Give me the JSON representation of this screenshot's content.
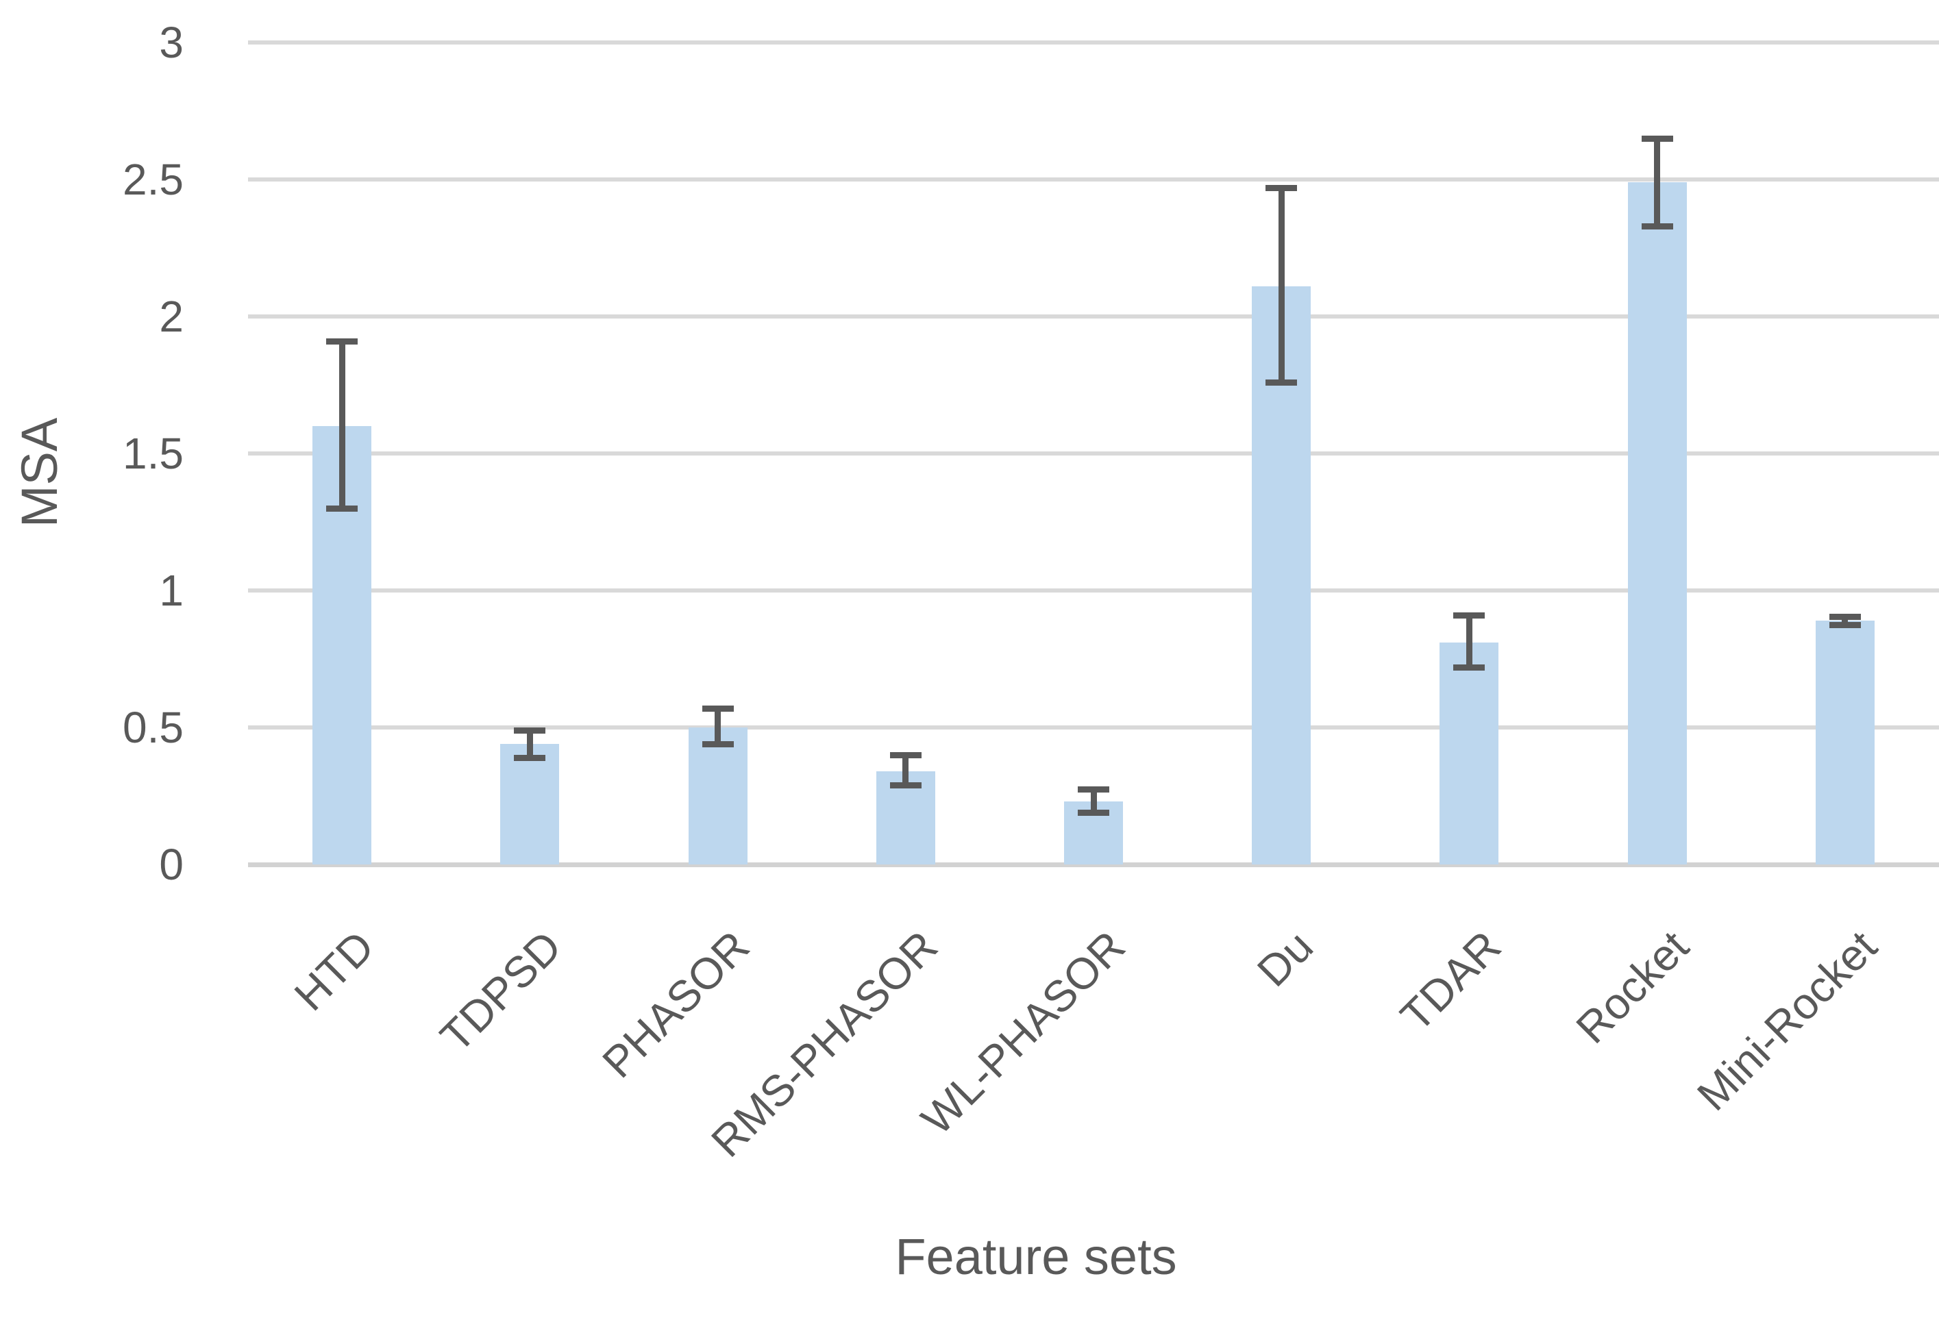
{
  "chart_data": {
    "type": "bar",
    "title": "",
    "xlabel": "Feature sets",
    "ylabel": "MSA",
    "categories": [
      "HTD",
      "TDPSD",
      "PHASOR",
      "RMS-PHASOR",
      "WL-PHASOR",
      "Du",
      "TDAR",
      "Rocket",
      "Mini-Rocket"
    ],
    "series": [
      {
        "name": "MSA",
        "values": [
          1.6,
          0.44,
          0.5,
          0.34,
          0.23,
          2.11,
          0.81,
          2.49,
          0.89
        ],
        "error_plus": [
          0.31,
          0.05,
          0.07,
          0.06,
          0.045,
          0.36,
          0.1,
          0.16,
          0.015
        ],
        "error_minus": [
          0.3,
          0.05,
          0.06,
          0.05,
          0.04,
          0.35,
          0.09,
          0.16,
          0.015
        ]
      }
    ],
    "yticks": [
      0,
      0.5,
      1,
      1.5,
      2,
      2.5,
      3
    ],
    "ytick_labels": [
      "0",
      "0.5",
      "1",
      "1.5",
      "2",
      "2.5",
      "3"
    ],
    "ylim": [
      0,
      3
    ],
    "grid": "horizontal-only",
    "legend": "none",
    "colors": {
      "bar_fill": "#BDD7EE",
      "error_bar": "#595959",
      "gridline": "#D9D9D9",
      "axis_line": "#D2D2D2",
      "text": "#595959"
    }
  }
}
